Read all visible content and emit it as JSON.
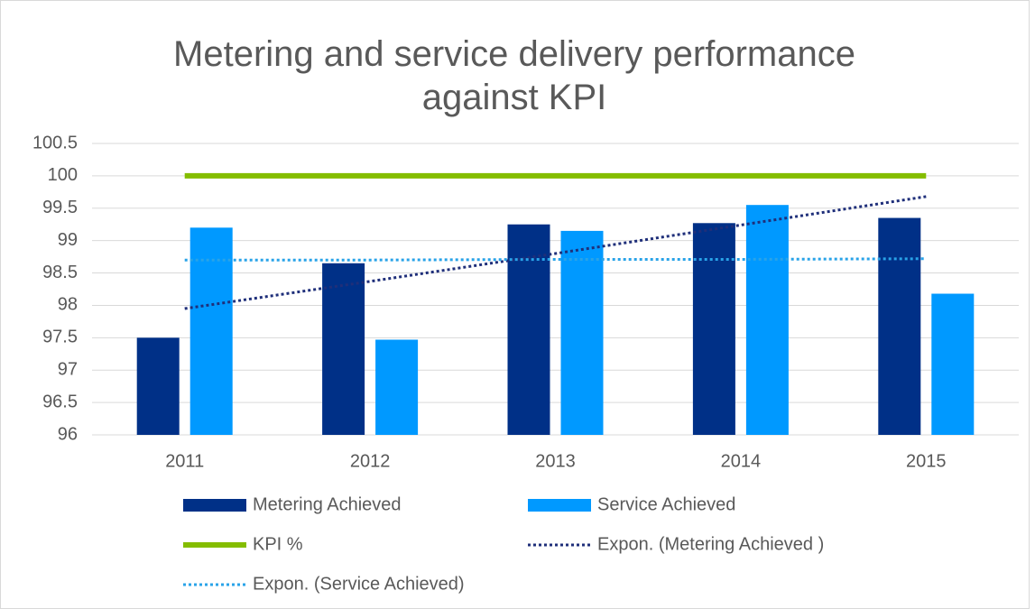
{
  "chart_data": {
    "type": "bar",
    "title": "Metering and service delivery performance against KPI",
    "categories": [
      "2011",
      "2012",
      "2013",
      "2014",
      "2015"
    ],
    "series": [
      {
        "name": "Metering Achieved",
        "type": "bar",
        "color": "#003087",
        "values": [
          97.5,
          98.65,
          99.25,
          99.27,
          99.35
        ]
      },
      {
        "name": "Service Achieved",
        "type": "bar",
        "color": "#0099ff",
        "values": [
          99.2,
          97.47,
          99.15,
          99.55,
          98.18
        ]
      },
      {
        "name": "KPI %",
        "type": "line",
        "style": "solid",
        "color": "#84bd00",
        "values": [
          100,
          100,
          100,
          100,
          100
        ]
      },
      {
        "name": "Expon. (Metering Achieved )",
        "type": "line",
        "style": "dotted",
        "color": "#1f2f7a",
        "values": [
          97.95,
          98.37,
          98.8,
          99.24,
          99.68
        ]
      },
      {
        "name": "Expon. (Service Achieved)",
        "type": "line",
        "style": "dotted",
        "color": "#29a3e8",
        "values": [
          98.7,
          98.7,
          98.71,
          98.71,
          98.72
        ]
      }
    ],
    "ylim": [
      96,
      100.5
    ],
    "yticks": [
      96,
      96.5,
      97,
      97.5,
      98,
      98.5,
      99,
      99.5,
      100,
      100.5
    ],
    "grid": true
  }
}
